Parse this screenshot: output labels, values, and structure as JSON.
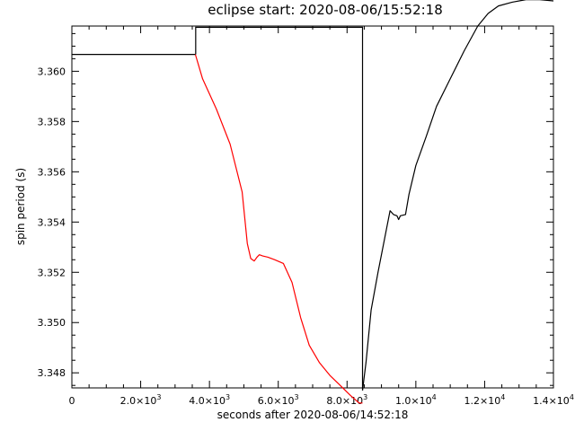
{
  "chart_data": {
    "type": "line",
    "title": "eclipse start: 2020-08-06/15:52:18",
    "xlabel": "seconds after 2020-08-06/14:52:18",
    "ylabel": "spin period (s)",
    "xlim": [
      0,
      14000
    ],
    "ylim": [
      3.3474,
      3.3618
    ],
    "grid": false,
    "colors": {
      "series_main": "#000000",
      "series_eclipse": "#ff0000",
      "eclipse_box": "#000000"
    },
    "x_ticks": [
      {
        "value": 0,
        "label": "0",
        "sup": ""
      },
      {
        "value": 2000,
        "label": "2.0×10",
        "sup": "3"
      },
      {
        "value": 4000,
        "label": "4.0×10",
        "sup": "3"
      },
      {
        "value": 6000,
        "label": "6.0×10",
        "sup": "3"
      },
      {
        "value": 8000,
        "label": "8.0×10",
        "sup": "3"
      },
      {
        "value": 10000,
        "label": "1.0×10",
        "sup": "4"
      },
      {
        "value": 12000,
        "label": "1.2×10",
        "sup": "4"
      },
      {
        "value": 14000,
        "label": "1.4×10",
        "sup": "4"
      }
    ],
    "y_ticks": [
      {
        "value": 3.348,
        "label": "3.348"
      },
      {
        "value": 3.35,
        "label": "3.350"
      },
      {
        "value": 3.352,
        "label": "3.352"
      },
      {
        "value": 3.354,
        "label": "3.354"
      },
      {
        "value": 3.356,
        "label": "3.356"
      },
      {
        "value": 3.358,
        "label": "3.358"
      },
      {
        "value": 3.36,
        "label": "3.360"
      }
    ],
    "eclipse_window": {
      "x_start": 3600,
      "x_end": 8450,
      "y_top": 3.36175
    },
    "series": [
      {
        "color": "#000000",
        "points": [
          [
            0,
            3.36067
          ],
          [
            3590,
            3.36067
          ]
        ]
      },
      {
        "color": "#ff0000",
        "points": [
          [
            3590,
            3.36067
          ],
          [
            3800,
            3.3597
          ],
          [
            4200,
            3.3585
          ],
          [
            4600,
            3.3571
          ],
          [
            4950,
            3.3552
          ],
          [
            5100,
            3.35315
          ],
          [
            5200,
            3.35255
          ],
          [
            5300,
            3.35245
          ],
          [
            5380,
            3.3526
          ],
          [
            5450,
            3.3527
          ],
          [
            5550,
            3.35265
          ],
          [
            5700,
            3.3526
          ],
          [
            5900,
            3.3525
          ],
          [
            6150,
            3.35235
          ],
          [
            6400,
            3.3516
          ],
          [
            6650,
            3.3502
          ],
          [
            6900,
            3.3491
          ],
          [
            7200,
            3.3484
          ],
          [
            7500,
            3.3479
          ],
          [
            7800,
            3.3475
          ],
          [
            8100,
            3.3471
          ],
          [
            8350,
            3.3468
          ],
          [
            8450,
            3.3468
          ]
        ]
      },
      {
        "color": "#000000",
        "points": [
          [
            8450,
            3.3473
          ],
          [
            8550,
            3.3484
          ],
          [
            8700,
            3.3505
          ],
          [
            8900,
            3.352
          ],
          [
            9100,
            3.3534
          ],
          [
            9250,
            3.35445
          ],
          [
            9350,
            3.3543
          ],
          [
            9450,
            3.35425
          ],
          [
            9500,
            3.3541
          ],
          [
            9550,
            3.35425
          ],
          [
            9700,
            3.3543
          ],
          [
            9800,
            3.3551
          ],
          [
            10000,
            3.35625
          ],
          [
            10300,
            3.3574
          ],
          [
            10600,
            3.3586
          ],
          [
            11000,
            3.3597
          ],
          [
            11400,
            3.3608
          ],
          [
            11800,
            3.3618
          ],
          [
            12100,
            3.3623
          ],
          [
            12400,
            3.3626
          ],
          [
            12800,
            3.36275
          ],
          [
            13200,
            3.36285
          ],
          [
            13600,
            3.36285
          ],
          [
            14000,
            3.3628
          ]
        ]
      }
    ]
  }
}
